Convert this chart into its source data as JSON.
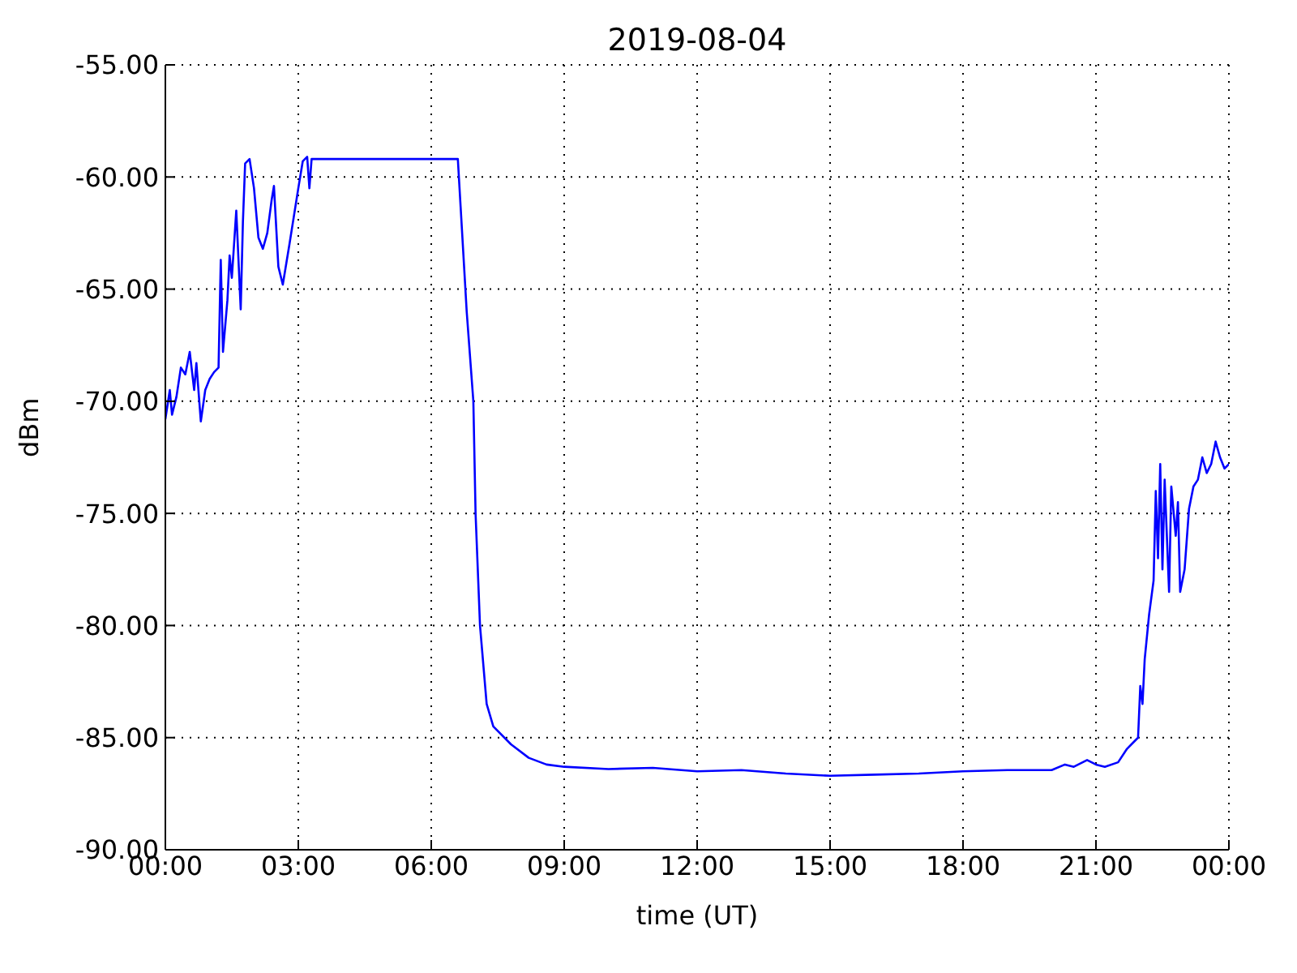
{
  "chart_data": {
    "type": "line",
    "title": "2019-08-04",
    "xlabel": "time (UT)",
    "ylabel": "dBm",
    "x": [
      0.0,
      0.1,
      0.15,
      0.25,
      0.35,
      0.45,
      0.55,
      0.65,
      0.7,
      0.8,
      0.9,
      1.0,
      1.1,
      1.2,
      1.25,
      1.3,
      1.4,
      1.45,
      1.5,
      1.6,
      1.7,
      1.75,
      1.8,
      1.9,
      2.0,
      2.1,
      2.2,
      2.3,
      2.4,
      2.45,
      2.55,
      2.65,
      2.8,
      3.0,
      3.1,
      3.2,
      3.25,
      3.3,
      6.6,
      6.8,
      6.95,
      7.0,
      7.1,
      7.25,
      7.4,
      7.8,
      8.2,
      8.6,
      9,
      10,
      11,
      12,
      13,
      14,
      15,
      16,
      17,
      18,
      19,
      20,
      20.3,
      20.5,
      20.8,
      21,
      21.2,
      21.5,
      21.7,
      21.85,
      21.95,
      22.0,
      22.05,
      22.1,
      22.2,
      22.3,
      22.35,
      22.4,
      22.45,
      22.5,
      22.55,
      22.65,
      22.7,
      22.8,
      22.85,
      22.9,
      23.0,
      23.1,
      23.2,
      23.3,
      23.4,
      23.5,
      23.6,
      23.7,
      23.8,
      23.9,
      24
    ],
    "series": [
      {
        "color": "#0000ff",
        "values": [
          -70.8,
          -69.5,
          -70.6,
          -69.8,
          -68.5,
          -68.8,
          -67.8,
          -69.5,
          -68.3,
          -70.9,
          -69.5,
          -69.0,
          -68.7,
          -68.5,
          -63.7,
          -67.8,
          -65.5,
          -63.5,
          -64.5,
          -61.5,
          -65.9,
          -62,
          -59.4,
          -59.2,
          -60.5,
          -62.7,
          -63.2,
          -62.5,
          -61.0,
          -60.4,
          -64,
          -64.8,
          -63,
          -60.5,
          -59.3,
          -59.1,
          -60.5,
          -59.2,
          -59.2,
          -66,
          -70,
          -75,
          -80,
          -83.5,
          -84.5,
          -85.3,
          -85.9,
          -86.2,
          -86.3,
          -86.4,
          -86.35,
          -86.5,
          -86.45,
          -86.6,
          -86.7,
          -86.65,
          -86.6,
          -86.5,
          -86.45,
          -86.45,
          -86.2,
          -86.3,
          -86.0,
          -86.2,
          -86.3,
          -86.1,
          -85.5,
          -85.2,
          -85.0,
          -82.7,
          -83.5,
          -81.5,
          -79.5,
          -78,
          -74,
          -77,
          -72.8,
          -77.5,
          -73.5,
          -78.5,
          -73.8,
          -76,
          -74.5,
          -78.5,
          -77.5,
          -74.8,
          -73.8,
          -73.5,
          -72.5,
          -73.2,
          -72.8,
          -71.8,
          -72.5,
          -73,
          -72.8
        ]
      }
    ],
    "xlim": [
      0,
      24
    ],
    "xticks": [
      {
        "value": 0,
        "label": "00:00"
      },
      {
        "value": 3,
        "label": "03:00"
      },
      {
        "value": 6,
        "label": "06:00"
      },
      {
        "value": 9,
        "label": "09:00"
      },
      {
        "value": 12,
        "label": "12:00"
      },
      {
        "value": 15,
        "label": "15:00"
      },
      {
        "value": 18,
        "label": "18:00"
      },
      {
        "value": 21,
        "label": "21:00"
      },
      {
        "value": 24,
        "label": "00:00"
      }
    ],
    "ylim": [
      -90,
      -55
    ],
    "yticks": [
      {
        "value": -90,
        "label": "-90.00"
      },
      {
        "value": -85,
        "label": "-85.00"
      },
      {
        "value": -80,
        "label": "-80.00"
      },
      {
        "value": -75,
        "label": "-75.00"
      },
      {
        "value": -70,
        "label": "-70.00"
      },
      {
        "value": -65,
        "label": "-65.00"
      },
      {
        "value": -60,
        "label": "-60.00"
      },
      {
        "value": -55,
        "label": "-55.00"
      }
    ],
    "grid": true,
    "line_style": "solid",
    "marker": "none"
  }
}
